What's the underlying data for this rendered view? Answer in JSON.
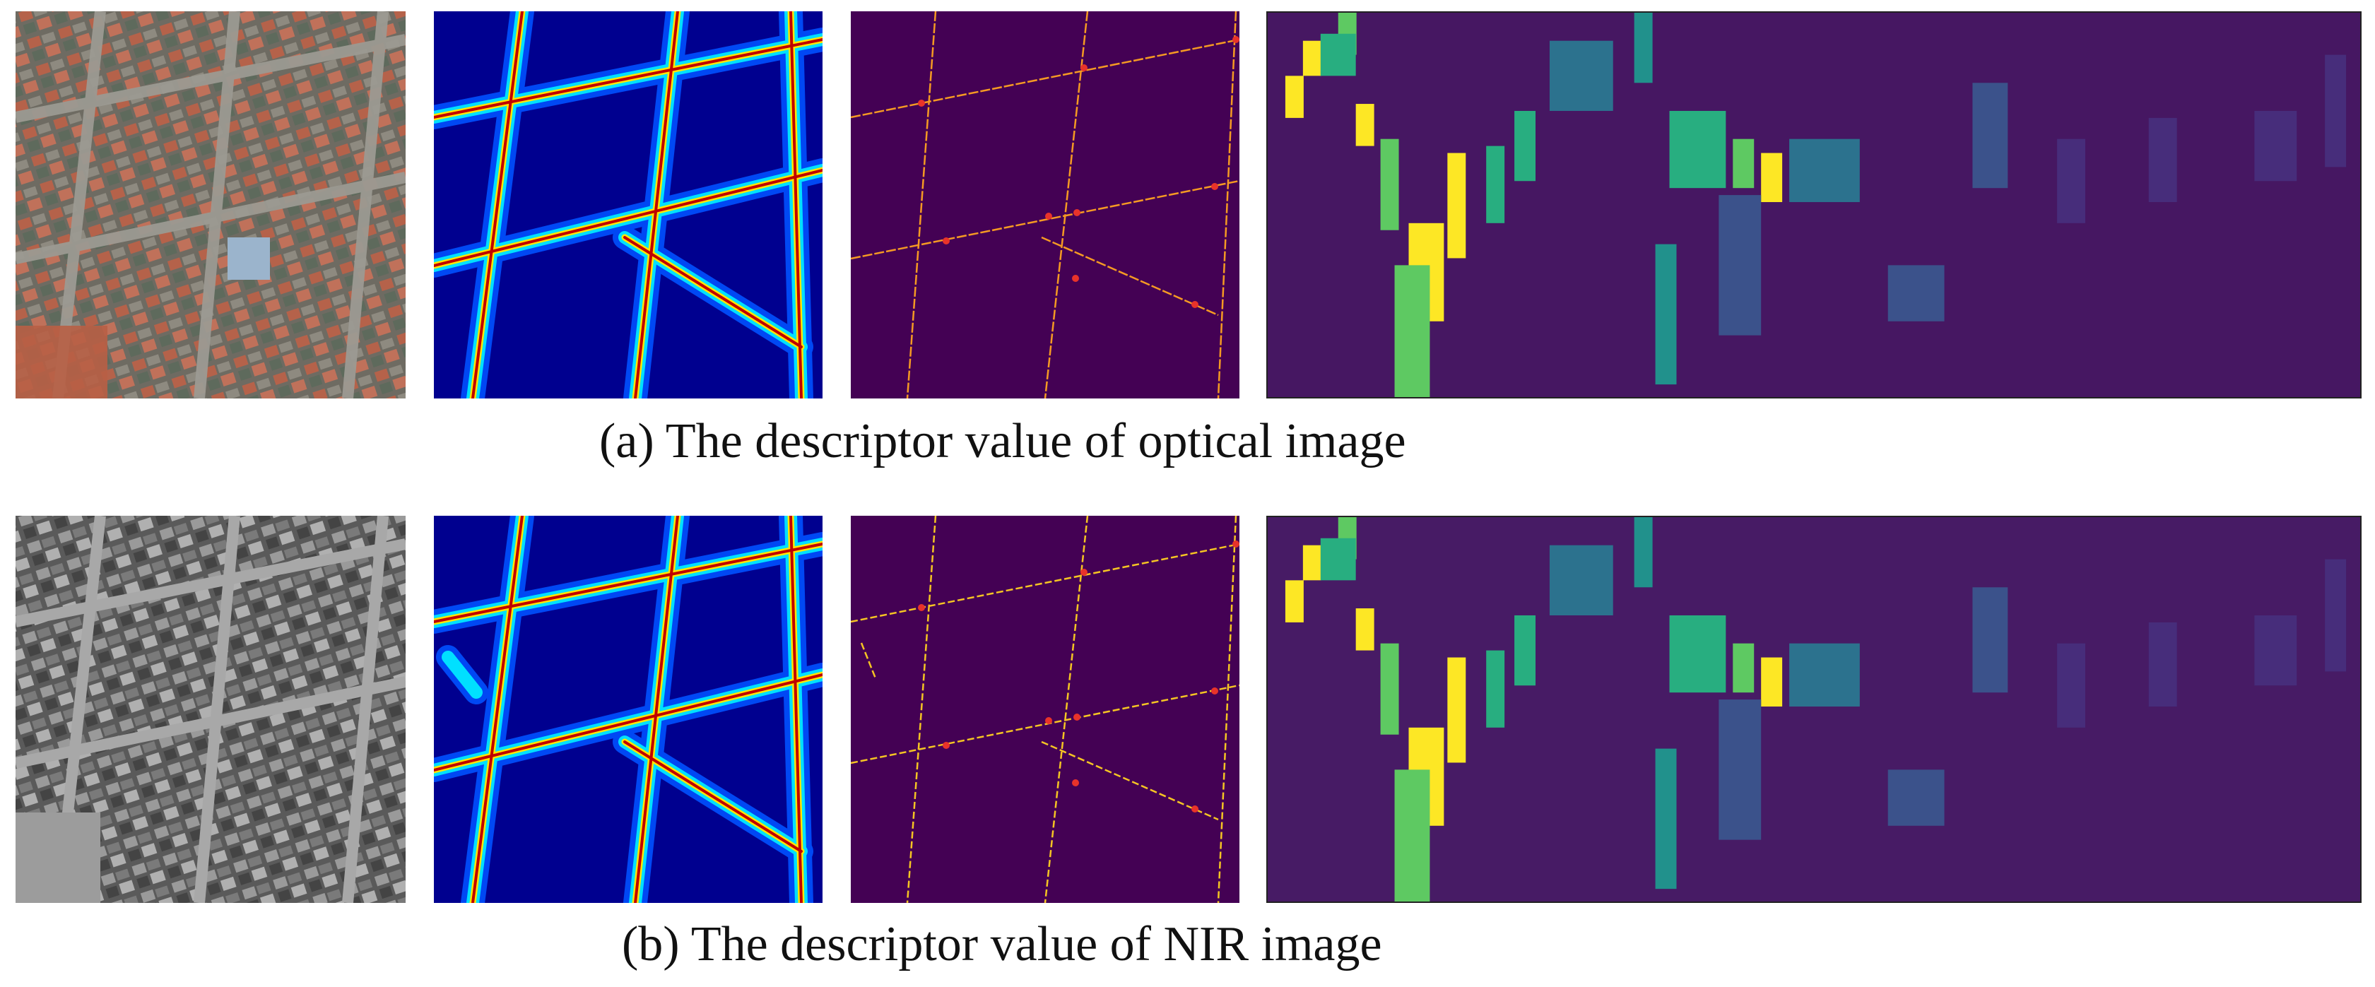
{
  "figure": {
    "rows": [
      {
        "id": "optical",
        "caption": "(a) The descriptor value of optical image",
        "imagery": "color-aerial",
        "feature_map": "jet-heatmap",
        "colors": {
          "background_heat": "#00008f",
          "road_mask_bg": "#440154",
          "road_line": "#f59a23",
          "keypoint": "#e8332a"
        }
      },
      {
        "id": "nir",
        "caption": "(b) The descriptor value of NIR image",
        "imagery": "grayscale-aerial",
        "feature_map": "jet-heatmap",
        "colors": {
          "background_heat": "#00008f",
          "road_mask_bg": "#440154",
          "road_line": "#f5c523",
          "keypoint": "#e8332a"
        }
      }
    ],
    "descriptor_colormap": [
      "#440154",
      "#472d7b",
      "#3b528b",
      "#2c728e",
      "#21918c",
      "#28ae80",
      "#5ec962",
      "#addc30",
      "#fde725"
    ]
  }
}
